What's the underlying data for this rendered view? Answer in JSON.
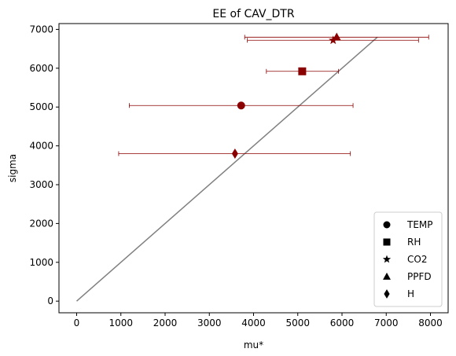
{
  "chart_data": {
    "type": "scatter",
    "title": "EE of CAV_DTR",
    "xlabel": "mu*",
    "ylabel": "sigma",
    "xlim": [
      -400,
      8400
    ],
    "ylim": [
      -300,
      7150
    ],
    "xticks": [
      0,
      1000,
      2000,
      3000,
      4000,
      5000,
      6000,
      7000,
      8000
    ],
    "yticks": [
      0,
      1000,
      2000,
      3000,
      4000,
      5000,
      6000,
      7000
    ],
    "grid": false,
    "legend_position": "lower right",
    "marker_color": "#8b0000",
    "line_color": "#808080",
    "reference_line": {
      "x": [
        0,
        6800
      ],
      "y": [
        0,
        6800
      ]
    },
    "series": [
      {
        "name": "TEMP",
        "marker": "circle",
        "x": 3720,
        "y": 5040,
        "xerr_low": 1190,
        "xerr_high": 6250
      },
      {
        "name": "RH",
        "marker": "square",
        "x": 5100,
        "y": 5920,
        "xerr_low": 4290,
        "xerr_high": 5920
      },
      {
        "name": "CO2",
        "marker": "star",
        "x": 5800,
        "y": 6720,
        "xerr_low": 3860,
        "xerr_high": 7730
      },
      {
        "name": "PPFD",
        "marker": "triangle",
        "x": 5880,
        "y": 6800,
        "xerr_low": 3800,
        "xerr_high": 7960
      },
      {
        "name": "H",
        "marker": "diamond",
        "x": 3580,
        "y": 3800,
        "xerr_low": 950,
        "xerr_high": 6190
      }
    ]
  }
}
